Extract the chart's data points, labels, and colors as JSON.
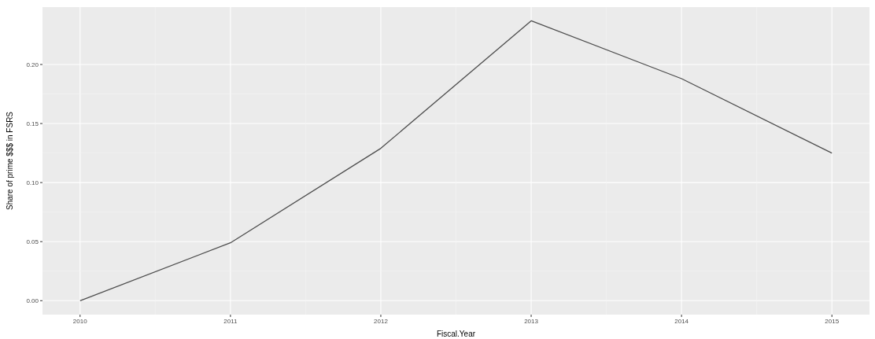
{
  "chart_data": {
    "type": "line",
    "xlabel": "Fiscal.Year",
    "ylabel": "Share of prime $$$ in FSRS",
    "x": [
      2010,
      2011,
      2012,
      2013,
      2014,
      2015
    ],
    "series": [
      {
        "color": "#4d4d4d",
        "values": [
          0,
          0.049,
          0.129,
          0.237,
          0.188,
          0.125
        ]
      }
    ],
    "xlim": [
      2009.75,
      2015.25
    ],
    "xticks": [
      2010,
      2011,
      2012,
      2013,
      2014,
      2015
    ],
    "ylim": [
      -0.0118,
      0.2486
    ],
    "yticks": [
      {
        "value": 0,
        "label": "0.00"
      },
      {
        "value": 0.05,
        "label": "0.05"
      },
      {
        "value": 0.1,
        "label": "0.10"
      },
      {
        "value": 0.15,
        "label": "0.15"
      },
      {
        "value": 0.2,
        "label": "0.20"
      }
    ],
    "grid": true,
    "marker": "none",
    "line_style": "solid"
  }
}
